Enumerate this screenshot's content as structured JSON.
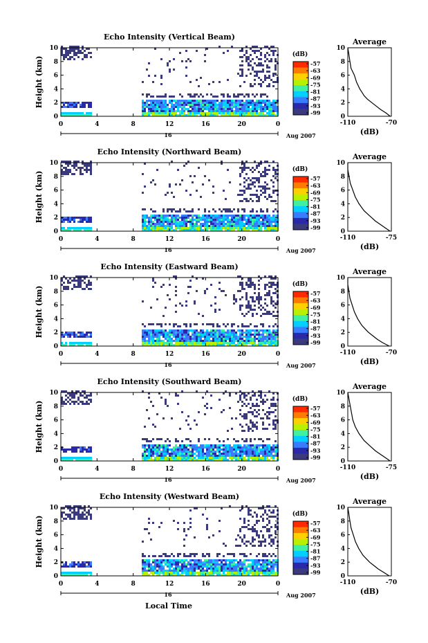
{
  "figure": {
    "xlabel_bottom": "Local Time",
    "month_label": "Aug 2007",
    "day_label": "16"
  },
  "colorbar": {
    "unit": "(dB)",
    "ticks": [
      "-57",
      "-63",
      "-69",
      "-75",
      "-81",
      "-87",
      "-93",
      "-99"
    ],
    "colors": [
      "#ff2a00",
      "#ff7a00",
      "#ffd000",
      "#b8f000",
      "#40f0a0",
      "#00d0ff",
      "#3a7cff",
      "#2a2aa8",
      "#3a3a7c"
    ]
  },
  "chart_data": [
    {
      "type": "heatmap",
      "title": "Echo Intensity (Vertical Beam)",
      "ylabel": "Height (km)",
      "x_ticks": [
        "0",
        "4",
        "8",
        "12",
        "16",
        "20",
        "0"
      ],
      "y_ticks": [
        "0",
        "2",
        "4",
        "6",
        "8",
        "10"
      ],
      "xlim": [
        0,
        24
      ],
      "ylim": [
        0,
        10
      ],
      "average": {
        "title": "Average",
        "xlabel": "(dB)",
        "x_ticks": [
          "-110",
          "-70"
        ],
        "y_ticks": [
          "0",
          "2",
          "4",
          "6",
          "8",
          "10"
        ],
        "profile": [
          [
            0,
            -71
          ],
          [
            0.5,
            -75
          ],
          [
            1,
            -80
          ],
          [
            1.5,
            -84
          ],
          [
            2,
            -88
          ],
          [
            2.5,
            -92
          ],
          [
            3,
            -95
          ],
          [
            3.5,
            -97
          ],
          [
            4,
            -99
          ],
          [
            5,
            -102
          ],
          [
            6,
            -104
          ],
          [
            7,
            -107
          ],
          [
            8,
            -108
          ],
          [
            9,
            -109
          ],
          [
            10,
            -110
          ]
        ]
      }
    },
    {
      "type": "heatmap",
      "title": "Echo Intensity (Northward Beam)",
      "ylabel": "Height (km)",
      "x_ticks": [
        "0",
        "4",
        "8",
        "12",
        "16",
        "20",
        "0"
      ],
      "y_ticks": [
        "0",
        "2",
        "4",
        "6",
        "8",
        "10"
      ],
      "xlim": [
        0,
        24
      ],
      "ylim": [
        0,
        10
      ],
      "average": {
        "title": "Average",
        "xlabel": "(dB)",
        "x_ticks": [
          "-110",
          "-75"
        ],
        "y_ticks": [
          "0",
          "2",
          "4",
          "6",
          "8",
          "10"
        ],
        "profile": [
          [
            0,
            -76
          ],
          [
            0.5,
            -80
          ],
          [
            1,
            -84
          ],
          [
            1.5,
            -88
          ],
          [
            2,
            -91
          ],
          [
            2.5,
            -94
          ],
          [
            3,
            -97
          ],
          [
            3.5,
            -99
          ],
          [
            4,
            -101
          ],
          [
            5,
            -104
          ],
          [
            6,
            -106
          ],
          [
            7,
            -108
          ],
          [
            8,
            -109
          ],
          [
            9,
            -110
          ],
          [
            10,
            -110
          ]
        ]
      }
    },
    {
      "type": "heatmap",
      "title": "Echo Intensity (Eastward Beam)",
      "ylabel": "Height (km)",
      "x_ticks": [
        "0",
        "4",
        "8",
        "12",
        "16",
        "20",
        "0"
      ],
      "y_ticks": [
        "0",
        "2",
        "4",
        "6",
        "8",
        "10"
      ],
      "xlim": [
        0,
        24
      ],
      "ylim": [
        0,
        10
      ],
      "average": {
        "title": "Average",
        "xlabel": "(dB)",
        "x_ticks": [
          "-110",
          "-70"
        ],
        "y_ticks": [
          "0",
          "2",
          "4",
          "6",
          "8",
          "10"
        ],
        "profile": [
          [
            0,
            -72
          ],
          [
            0.5,
            -78
          ],
          [
            1,
            -83
          ],
          [
            1.5,
            -87
          ],
          [
            2,
            -91
          ],
          [
            2.5,
            -94
          ],
          [
            3,
            -97
          ],
          [
            3.5,
            -99
          ],
          [
            4,
            -101
          ],
          [
            5,
            -104
          ],
          [
            6,
            -106
          ],
          [
            7,
            -108
          ],
          [
            8,
            -109
          ],
          [
            9,
            -110
          ],
          [
            10,
            -110
          ]
        ]
      }
    },
    {
      "type": "heatmap",
      "title": "Echo Intensity (Southward Beam)",
      "ylabel": "Height (km)",
      "x_ticks": [
        "0",
        "4",
        "8",
        "12",
        "16",
        "20",
        "0"
      ],
      "y_ticks": [
        "0",
        "2",
        "4",
        "6",
        "8",
        "10"
      ],
      "xlim": [
        0,
        24
      ],
      "ylim": [
        0,
        10
      ],
      "average": {
        "title": "Average",
        "xlabel": "(dB)",
        "x_ticks": [
          "-110",
          "-75"
        ],
        "y_ticks": [
          "0",
          "2",
          "4",
          "6",
          "8",
          "10"
        ],
        "profile": [
          [
            0,
            -76
          ],
          [
            0.5,
            -80
          ],
          [
            1,
            -84
          ],
          [
            1.5,
            -88
          ],
          [
            2,
            -91
          ],
          [
            2.5,
            -94
          ],
          [
            3,
            -97
          ],
          [
            3.5,
            -99
          ],
          [
            4,
            -101
          ],
          [
            5,
            -104
          ],
          [
            6,
            -106
          ],
          [
            7,
            -107
          ],
          [
            8,
            -108
          ],
          [
            9,
            -109
          ],
          [
            10,
            -110
          ]
        ]
      }
    },
    {
      "type": "heatmap",
      "title": "Echo Intensity (Westward Beam)",
      "ylabel": "Height (km)",
      "x_ticks": [
        "0",
        "4",
        "8",
        "12",
        "16",
        "20",
        "0"
      ],
      "y_ticks": [
        "0",
        "2",
        "4",
        "6",
        "8",
        "10"
      ],
      "xlim": [
        0,
        24
      ],
      "ylim": [
        0,
        10
      ],
      "average": {
        "title": "Average",
        "xlabel": "(dB)",
        "x_ticks": [
          "-110",
          "-70"
        ],
        "y_ticks": [
          "0",
          "2",
          "4",
          "6",
          "8",
          "10"
        ],
        "profile": [
          [
            0,
            -72
          ],
          [
            0.5,
            -77
          ],
          [
            1,
            -82
          ],
          [
            1.5,
            -86
          ],
          [
            2,
            -90
          ],
          [
            2.5,
            -93
          ],
          [
            3,
            -96
          ],
          [
            3.5,
            -98
          ],
          [
            4,
            -100
          ],
          [
            5,
            -103
          ],
          [
            6,
            -105
          ],
          [
            7,
            -107
          ],
          [
            8,
            -108
          ],
          [
            9,
            -109
          ],
          [
            10,
            -110
          ]
        ]
      }
    }
  ]
}
